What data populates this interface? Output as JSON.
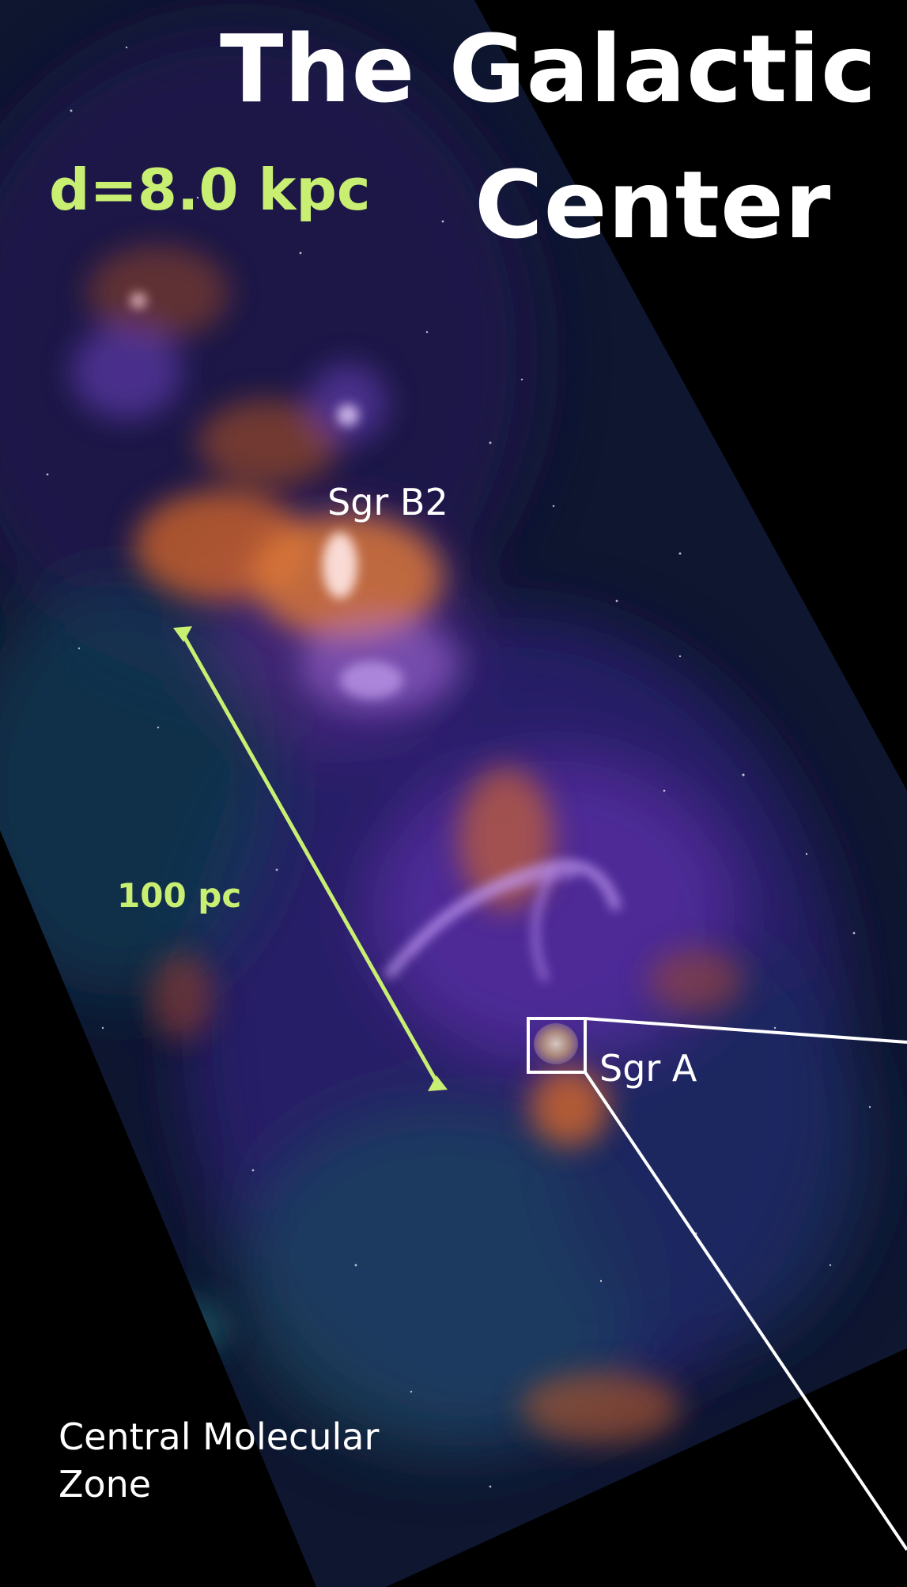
{
  "title": {
    "line1": "The Galactic",
    "line2": "Center"
  },
  "distance_label": "d=8.0 kpc",
  "scale_bar_label": "100 pc",
  "labels": {
    "sgr_b2": "Sgr B2",
    "sgr_a": "Sgr A",
    "cmz_line1": "Central Molecular",
    "cmz_line2": "Zone"
  },
  "colors": {
    "background": "#000000",
    "annotation_green": "#c9ef72",
    "annotation_white": "#ffffff",
    "emission_orange": "#d96a2a",
    "emission_violet": "#8a4fd8",
    "dust_teal": "#2f7f8a"
  }
}
